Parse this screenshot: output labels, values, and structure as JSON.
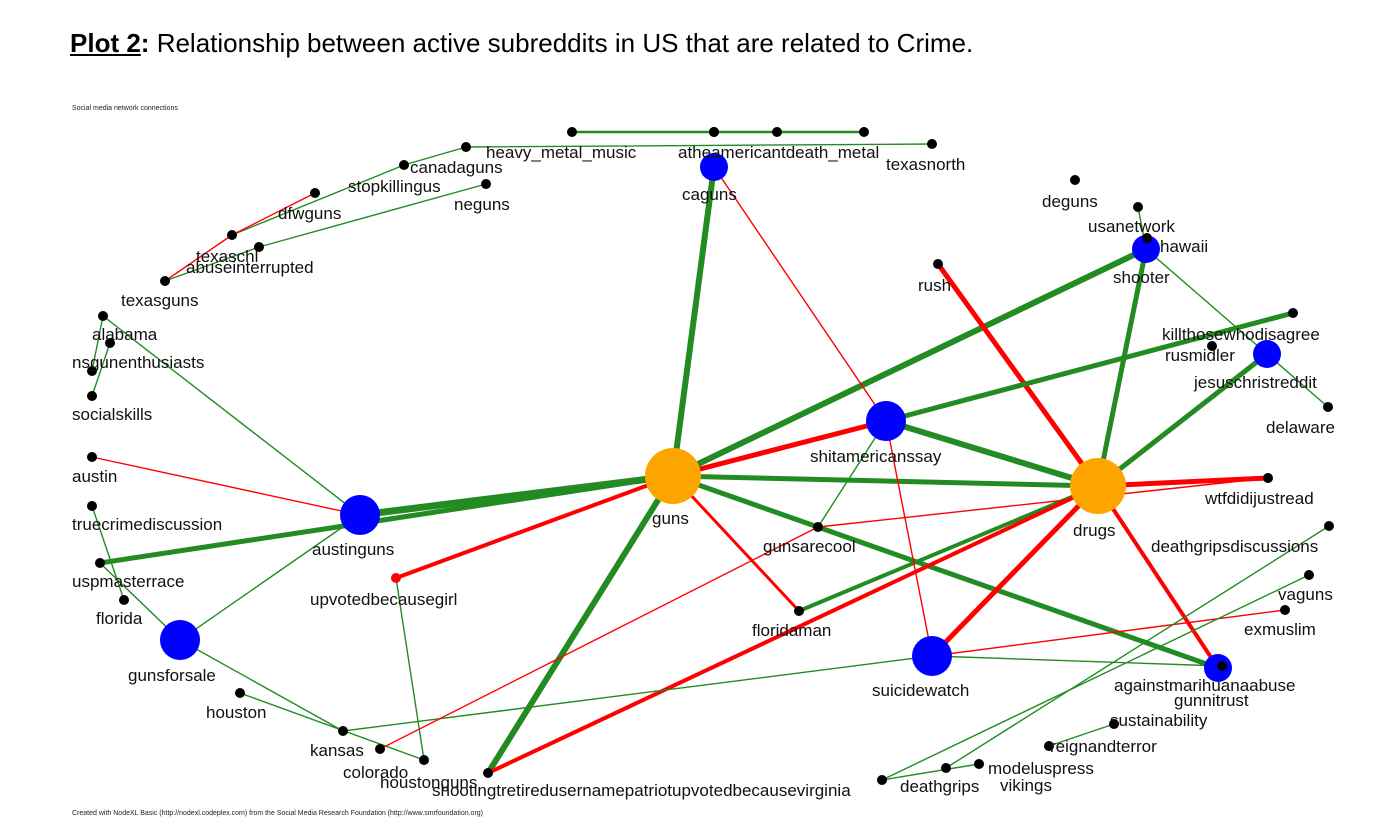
{
  "heading": {
    "lead": "Plot 2",
    "colon": ":",
    "text": " Relationship between active subreddits in US that are related to Crime."
  },
  "graph_title": "Social media network connections",
  "footer": "Created with NodeXL Basic (http://nodexl.codeplex.com) from the Social Media Research Foundation (http://www.smrfoundation.org)",
  "colors": {
    "hub_orange": "#FFA500",
    "hub_blue": "#0000FF",
    "edge_green": "#228B22",
    "edge_red": "#FF0000",
    "node_black": "#000000",
    "label_red": "#FF0000"
  },
  "nodes": [
    {
      "id": "guns",
      "label": "guns",
      "kind": "orange",
      "label_color": "#FFA500"
    },
    {
      "id": "drugs",
      "label": "drugs",
      "kind": "orange",
      "label_color": "#FFA500"
    },
    {
      "id": "shitamericanssay",
      "label": "shitamericanssay",
      "kind": "blue",
      "label_color": "#0000FF"
    },
    {
      "id": "austinguns",
      "label": "austinguns",
      "kind": "blue",
      "label_color": "#0000FF"
    },
    {
      "id": "gunsforsale",
      "label": "gunsforsale",
      "kind": "blue",
      "label_color": "#0000FF"
    },
    {
      "id": "suicidewatch",
      "label": "suicidewatch",
      "kind": "blue",
      "label_color": "#0000FF"
    },
    {
      "id": "caguns",
      "label": "caguns",
      "kind": "blue",
      "label_color": "#0000FF"
    },
    {
      "id": "shooter",
      "label": "shooter",
      "kind": "blue",
      "label_color": "#0000FF"
    },
    {
      "id": "jesuschristreddit",
      "label": "jesuschristreddit",
      "kind": "blue",
      "label_color": "#0000FF"
    },
    {
      "id": "gunnitrust",
      "label": "gunnitrust",
      "kind": "blue",
      "label_color": "#0000FF"
    },
    {
      "id": "upvotedbecausegirl",
      "label": "upvotedbecausegirl",
      "kind": "red",
      "label_color": "#FF0000"
    },
    {
      "id": "heavy_metal_music",
      "label": "heavy_metal_music",
      "kind": "black"
    },
    {
      "id": "atheamericantdeath_metal",
      "label": "atheamericantdeath_metal",
      "kind": "black"
    },
    {
      "id": "texasnorth",
      "label": "texasnorth",
      "kind": "black"
    },
    {
      "id": "canadaguns",
      "label": "canadaguns",
      "kind": "black"
    },
    {
      "id": "stopkillingus",
      "label": "stopkillingus",
      "kind": "black"
    },
    {
      "id": "neguns",
      "label": "neguns",
      "kind": "black"
    },
    {
      "id": "dfwguns",
      "label": "dfwguns",
      "kind": "black"
    },
    {
      "id": "texaschl",
      "label": "texaschl",
      "kind": "black"
    },
    {
      "id": "abuseinterrupted",
      "label": "abuseinterrupted",
      "kind": "black"
    },
    {
      "id": "texasguns",
      "label": "texasguns",
      "kind": "black"
    },
    {
      "id": "alabama",
      "label": "alabama",
      "kind": "black"
    },
    {
      "id": "nsgunenthusiasts",
      "label": "nsgunenthusiasts",
      "kind": "black"
    },
    {
      "id": "socialskills",
      "label": "socialskills",
      "kind": "black"
    },
    {
      "id": "austin",
      "label": "austin",
      "kind": "black"
    },
    {
      "id": "truecrimediscussion",
      "label": "truecrimediscussion",
      "kind": "black"
    },
    {
      "id": "uspmasterrace",
      "label": "uspmasterrace",
      "kind": "black"
    },
    {
      "id": "florida",
      "label": "florida",
      "kind": "black"
    },
    {
      "id": "houston",
      "label": "houston",
      "kind": "black"
    },
    {
      "id": "kansas",
      "label": "kansas",
      "kind": "black"
    },
    {
      "id": "colorado",
      "label": "colorado",
      "kind": "black"
    },
    {
      "id": "houstonguns",
      "label": "houstonguns",
      "kind": "black"
    },
    {
      "id": "shootingtretiredusername",
      "label": "shootingtretiredusernamepatriotupvotedbecausevirginia",
      "kind": "black"
    },
    {
      "id": "deathgrips",
      "label": "deathgrips",
      "kind": "black"
    },
    {
      "id": "vikings",
      "label": "vikings",
      "kind": "black"
    },
    {
      "id": "modeluspress",
      "label": "modeluspress",
      "kind": "black"
    },
    {
      "id": "reignandterror",
      "label": "reignandterror",
      "kind": "black"
    },
    {
      "id": "sustainability",
      "label": "sustainability",
      "kind": "black"
    },
    {
      "id": "againstmarihuanaabuse",
      "label": "againstmarihuanaabuse",
      "kind": "black"
    },
    {
      "id": "exmuslim",
      "label": "exmuslim",
      "kind": "black"
    },
    {
      "id": "vaguns",
      "label": "vaguns",
      "kind": "black"
    },
    {
      "id": "deathgripsdiscussions",
      "label": "deathgripsdiscussions",
      "kind": "black"
    },
    {
      "id": "wtfdidijustread",
      "label": "wtfdidijustread",
      "kind": "black"
    },
    {
      "id": "delaware",
      "label": "delaware",
      "kind": "black"
    },
    {
      "id": "rusmidler",
      "label": "rusmidler",
      "kind": "black"
    },
    {
      "id": "killthosewhodisagree",
      "label": "killthosewhodisagree",
      "kind": "black"
    },
    {
      "id": "usanetwork",
      "label": "usanetwork",
      "kind": "black"
    },
    {
      "id": "hawaii",
      "label": "hawaii",
      "kind": "black"
    },
    {
      "id": "deguns",
      "label": "deguns",
      "kind": "black"
    },
    {
      "id": "rush",
      "label": "rush",
      "kind": "black"
    },
    {
      "id": "gunsarecool",
      "label": "gunsarecool",
      "kind": "black"
    },
    {
      "id": "floridaman",
      "label": "floridaman",
      "kind": "black"
    }
  ]
}
